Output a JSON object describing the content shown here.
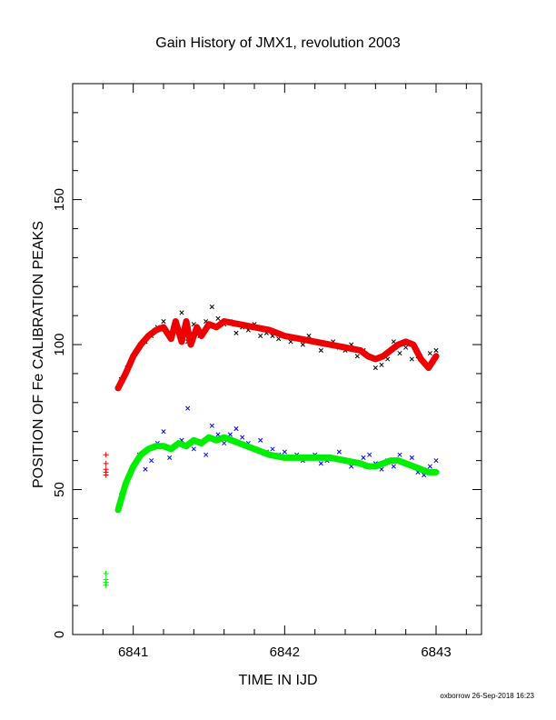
{
  "chart_data": {
    "type": "scatter",
    "title": "Gain History of JMX1, revolution 2003",
    "xlabel": "TIME IN IJD",
    "ylabel": "POSITION OF Fe CALIBRATION PEAKS",
    "xlim": [
      6840.6,
      6843.3
    ],
    "ylim": [
      0,
      190
    ],
    "x_ticks": [
      6841,
      6842,
      6843
    ],
    "y_ticks": [
      0,
      50,
      100,
      150
    ],
    "grid": false,
    "footer": "oxborrow 26-Sep-2018 16:23",
    "colors": {
      "black": "#000000",
      "red": "#ee0000",
      "blue": "#0000ff",
      "green": "#00ee00"
    },
    "series": [
      {
        "marker": "x",
        "color": "#000000",
        "x": [
          6840.92,
          6840.96,
          6841.0,
          6841.04,
          6841.08,
          6841.12,
          6841.16,
          6841.2,
          6841.24,
          6841.28,
          6841.32,
          6841.36,
          6841.4,
          6841.44,
          6841.48,
          6841.52,
          6841.56,
          6841.6,
          6841.64,
          6841.68,
          6841.72,
          6841.76,
          6841.8,
          6841.84,
          6841.88,
          6841.92,
          6841.96,
          6842.0,
          6842.04,
          6842.08,
          6842.12,
          6842.16,
          6842.2,
          6842.24,
          6842.28,
          6842.32,
          6842.36,
          6842.4,
          6842.44,
          6842.48,
          6842.52,
          6842.56,
          6842.6,
          6842.64,
          6842.68,
          6842.72,
          6842.76,
          6842.8,
          6842.84,
          6842.88,
          6842.92,
          6842.96,
          6843.0
        ],
        "y": [
          88,
          92,
          96,
          99,
          101,
          103,
          106,
          108,
          104,
          107,
          111,
          101,
          107,
          103,
          108,
          113,
          109,
          107,
          108,
          104,
          106,
          105,
          107,
          103,
          104,
          103,
          102,
          103,
          101,
          102,
          100,
          103,
          101,
          98,
          100,
          101,
          99,
          98,
          100,
          96,
          98,
          96,
          92,
          93,
          95,
          101,
          97,
          99,
          95,
          96,
          94,
          97,
          98
        ]
      },
      {
        "marker": "line",
        "color": "#ee0000",
        "x": [
          6840.9,
          6840.95,
          6841.0,
          6841.05,
          6841.1,
          6841.15,
          6841.2,
          6841.25,
          6841.28,
          6841.32,
          6841.35,
          6841.38,
          6841.42,
          6841.45,
          6841.5,
          6841.55,
          6841.6,
          6841.7,
          6841.8,
          6841.9,
          6842.0,
          6842.1,
          6842.2,
          6842.3,
          6842.4,
          6842.5,
          6842.55,
          6842.6,
          6842.65,
          6842.7,
          6842.75,
          6842.8,
          6842.85,
          6842.9,
          6842.95,
          6843.0
        ],
        "y": [
          85,
          90,
          96,
          100,
          103,
          105,
          106,
          102,
          108,
          101,
          108,
          100,
          106,
          103,
          107,
          106,
          108,
          107,
          106,
          105,
          103,
          102,
          101,
          100,
          99,
          98,
          96,
          95,
          96,
          98,
          100,
          101,
          100,
          95,
          92,
          96
        ]
      },
      {
        "marker": "+",
        "color": "#ee0000",
        "x": [
          6840.82,
          6840.82,
          6840.82,
          6840.82,
          6840.82
        ],
        "y": [
          62,
          59,
          57,
          56,
          55
        ]
      },
      {
        "marker": "x",
        "color": "#0000ff",
        "x": [
          6840.92,
          6840.96,
          6841.0,
          6841.04,
          6841.08,
          6841.12,
          6841.16,
          6841.2,
          6841.24,
          6841.28,
          6841.32,
          6841.36,
          6841.4,
          6841.44,
          6841.48,
          6841.52,
          6841.56,
          6841.6,
          6841.64,
          6841.68,
          6841.72,
          6841.76,
          6841.8,
          6841.84,
          6841.88,
          6841.92,
          6841.96,
          6842.0,
          6842.04,
          6842.08,
          6842.12,
          6842.16,
          6842.2,
          6842.24,
          6842.28,
          6842.32,
          6842.36,
          6842.4,
          6842.44,
          6842.48,
          6842.52,
          6842.56,
          6842.6,
          6842.64,
          6842.68,
          6842.72,
          6842.76,
          6842.8,
          6842.84,
          6842.88,
          6842.92,
          6842.96,
          6843.0
        ],
        "y": [
          48,
          53,
          58,
          62,
          57,
          60,
          66,
          70,
          61,
          65,
          67,
          78,
          64,
          66,
          62,
          72,
          69,
          66,
          69,
          71,
          68,
          66,
          64,
          67,
          63,
          64,
          62,
          63,
          61,
          62,
          60,
          61,
          62,
          59,
          60,
          61,
          63,
          60,
          58,
          59,
          61,
          62,
          59,
          57,
          60,
          58,
          62,
          59,
          61,
          56,
          55,
          58,
          60
        ]
      },
      {
        "marker": "line",
        "color": "#00ee00",
        "x": [
          6840.9,
          6840.95,
          6841.0,
          6841.05,
          6841.1,
          6841.15,
          6841.2,
          6841.25,
          6841.3,
          6841.35,
          6841.4,
          6841.45,
          6841.5,
          6841.55,
          6841.6,
          6841.65,
          6841.7,
          6841.8,
          6841.9,
          6842.0,
          6842.1,
          6842.2,
          6842.3,
          6842.4,
          6842.5,
          6842.55,
          6842.6,
          6842.65,
          6842.7,
          6842.75,
          6842.8,
          6842.85,
          6842.9,
          6842.95,
          6843.0
        ],
        "y": [
          43,
          52,
          58,
          62,
          64,
          65,
          65,
          64,
          66,
          65,
          67,
          66,
          68,
          67,
          68,
          67,
          66,
          64,
          62,
          61,
          61,
          61,
          61,
          60,
          59,
          58,
          58,
          59,
          60,
          60,
          59,
          58,
          57,
          56,
          56
        ]
      },
      {
        "marker": "+",
        "color": "#00ee00",
        "x": [
          6840.82,
          6840.82,
          6840.82,
          6840.82
        ],
        "y": [
          21,
          19,
          18,
          17
        ]
      }
    ]
  }
}
